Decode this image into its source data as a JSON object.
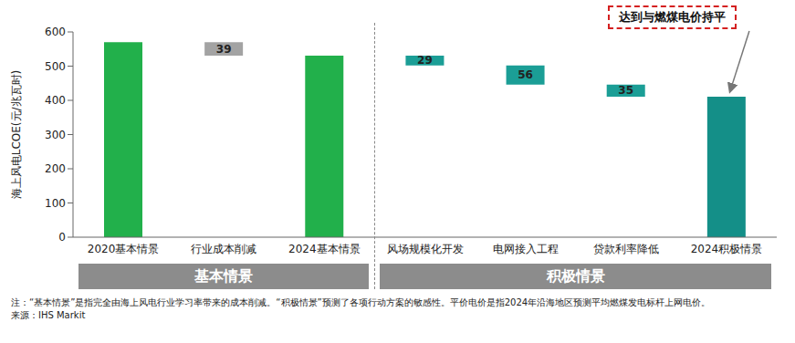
{
  "chart_data": {
    "type": "waterfall",
    "y_label": "海上风电LCOE(元/兆瓦时)",
    "categories": [
      "2020基本情景",
      "行业成本削减",
      "2024基本情景",
      "风场规模化开发",
      "电网接入工程",
      "贷款利率降低",
      "2024积极情景"
    ],
    "values": [
      570,
      39,
      531,
      29,
      56,
      35,
      411
    ],
    "colors": [
      "#22b04b",
      "#a3a3a3",
      "#22b04b",
      "#1b9e96",
      "#1b9e96",
      "#1b9e96",
      "#148f88"
    ],
    "ylim": [
      0,
      600
    ],
    "yticks": [
      0,
      100,
      200,
      300,
      400,
      500,
      600
    ],
    "grid": false,
    "data_labels": true,
    "groups": [
      {
        "label": "基本情景",
        "categories": [
          "2020基本情景",
          "行业成本削减",
          "2024基本情景"
        ]
      },
      {
        "label": "积极情景",
        "categories": [
          "风场规模化开发",
          "电网接入工程",
          "贷款利率降低",
          "2024积极情景"
        ]
      }
    ],
    "annotation": {
      "text": "达到与燃煤电价持平",
      "category": "2024积极情景"
    },
    "note": "注：“基本情景”是指完全由海上风电行业学习率带来的成本削减。“积极情景”预测了各项行动方案的敏感性。平价电价是指2024年沿海地区预测平均燃煤发电标杆上网电价。",
    "source": "来源：IHS Markit"
  }
}
